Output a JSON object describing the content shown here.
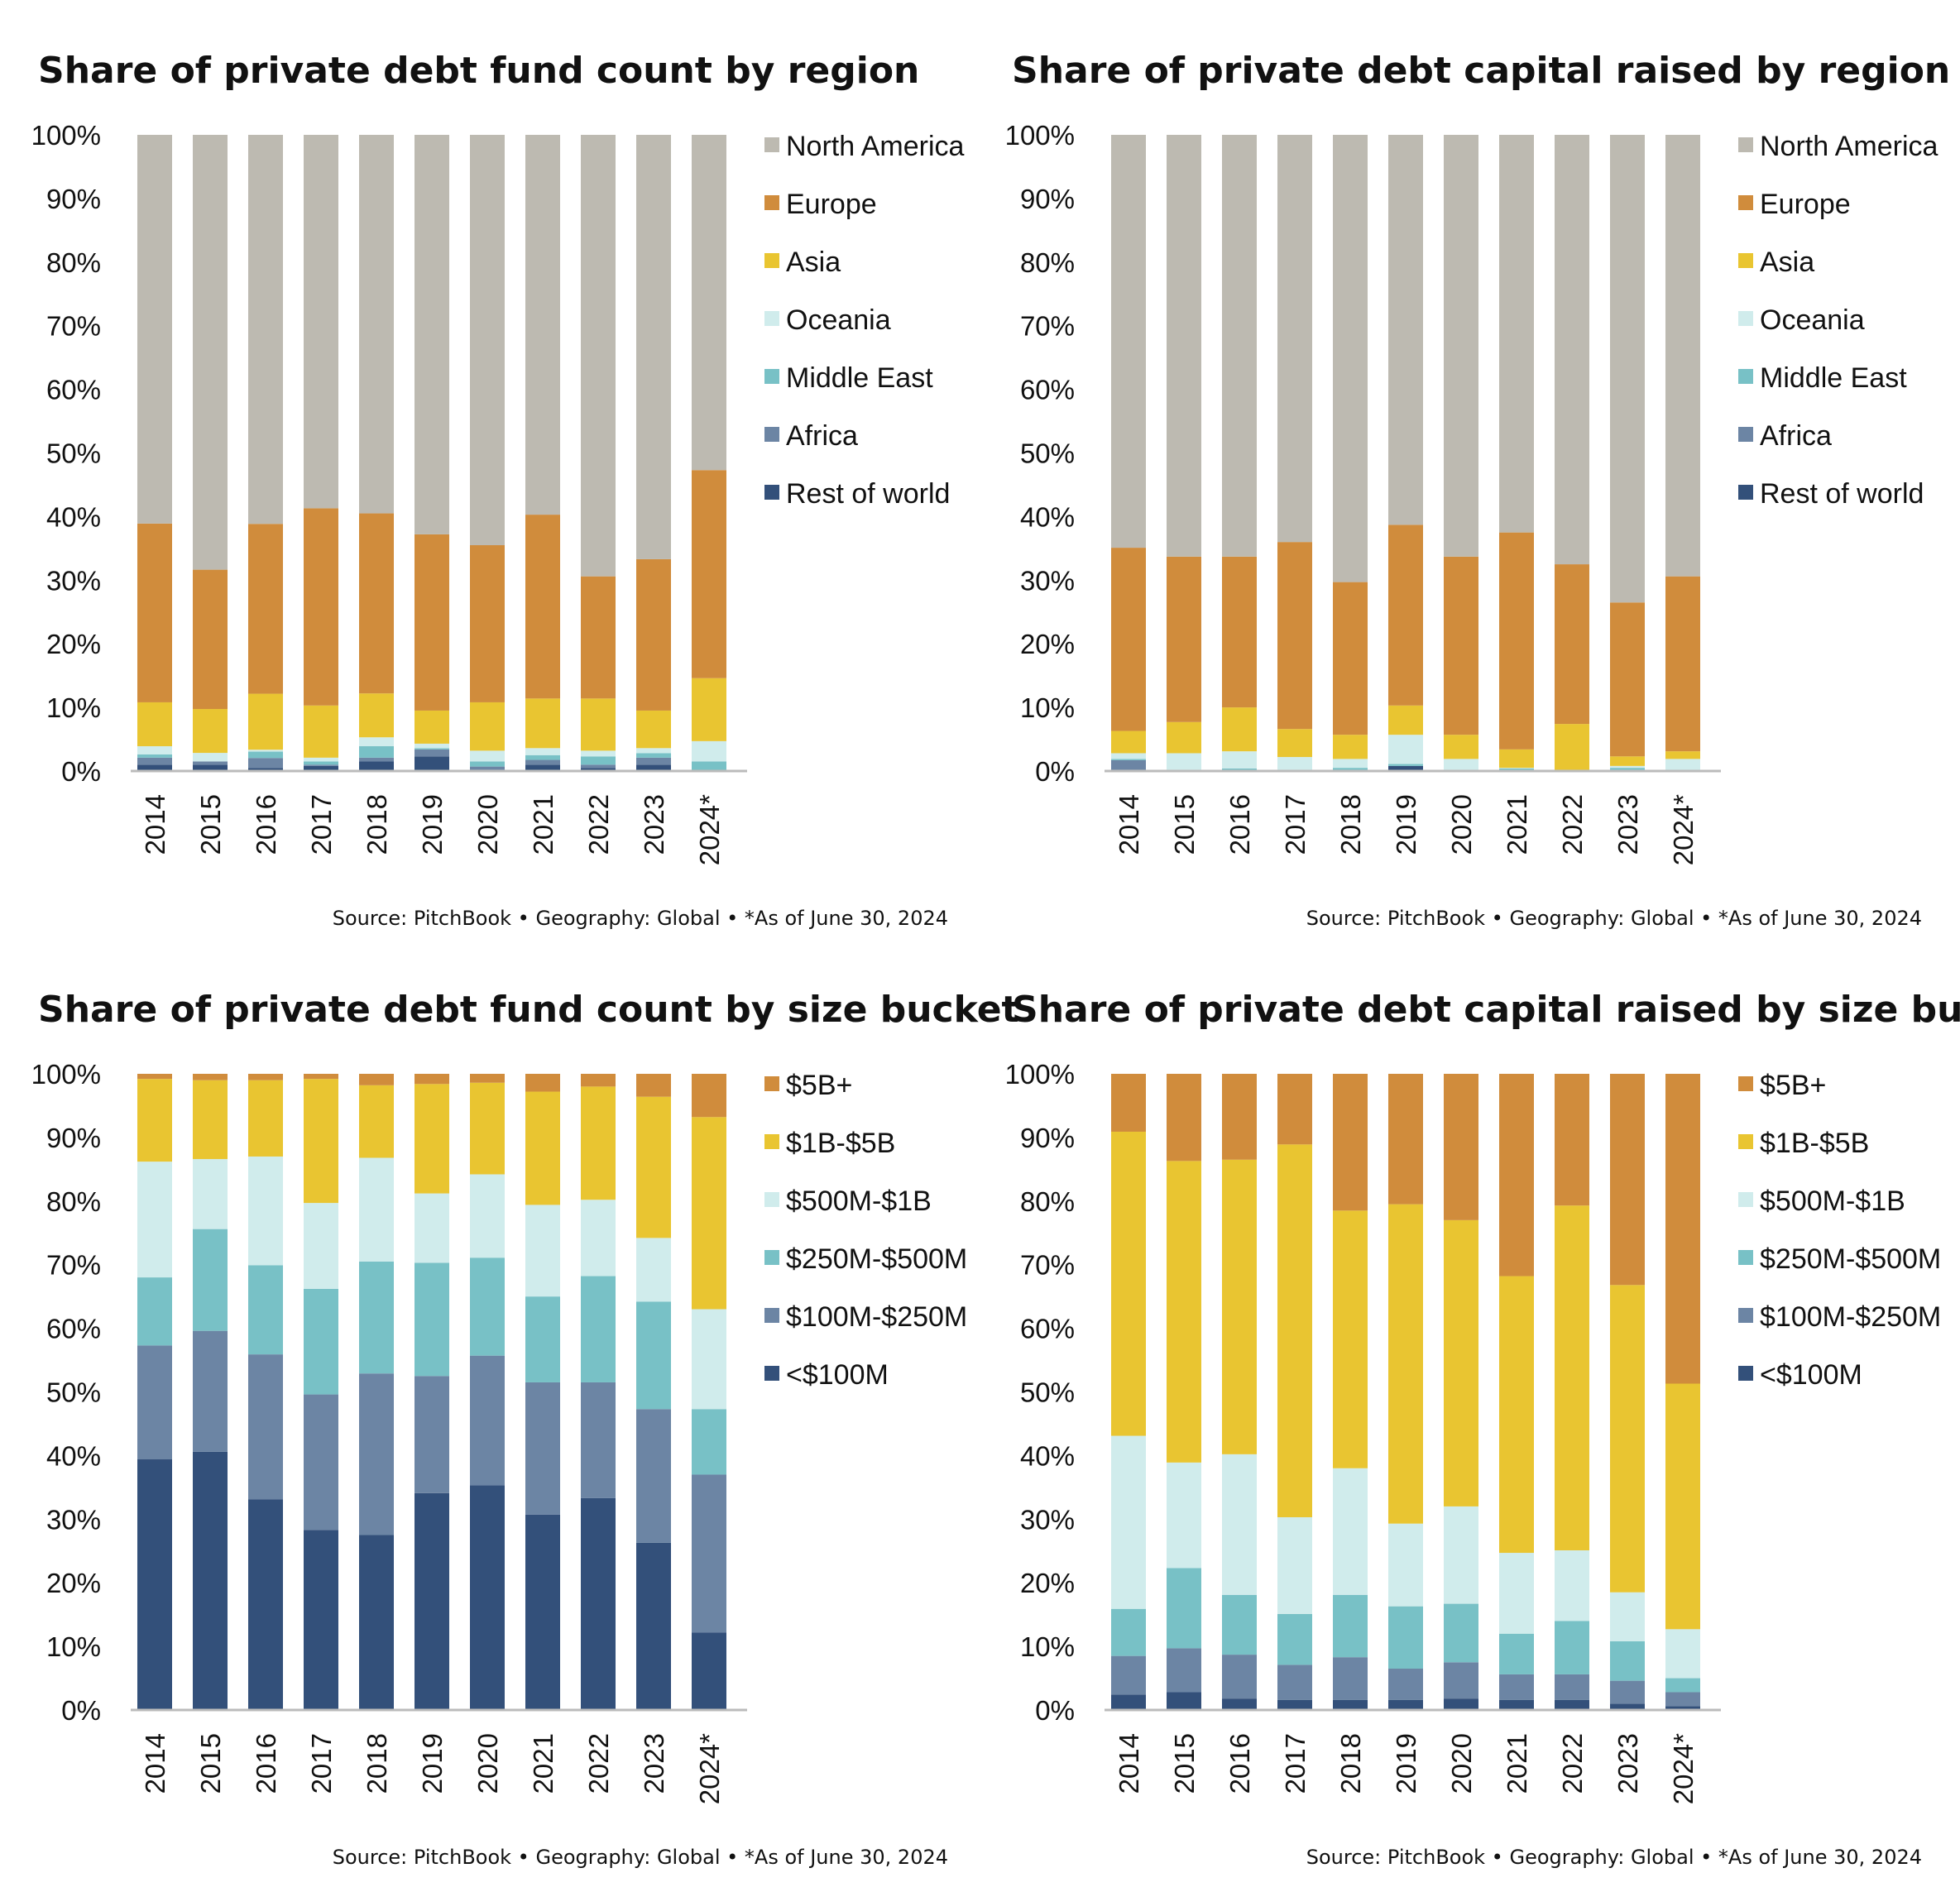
{
  "source_note": "Source: PitchBook  •  Geography: Global  •  *As of June 30, 2024",
  "chart_data": [
    {
      "type": "bar",
      "stacked": true,
      "title": "Share of private debt fund count by region",
      "categories": [
        "2014",
        "2015",
        "2016",
        "2017",
        "2018",
        "2019",
        "2020",
        "2021",
        "2022",
        "2023",
        "2024*"
      ],
      "yticks": [
        "0%",
        "10%",
        "20%",
        "30%",
        "40%",
        "50%",
        "60%",
        "70%",
        "80%",
        "90%",
        "100%"
      ],
      "ylim": [
        0,
        100
      ],
      "legend_position": "right",
      "series": [
        {
          "name": "Rest of world",
          "color": "#33507a",
          "values": [
            1.0,
            1.0,
            0.45,
            0.8,
            1.5,
            2.3,
            0.2,
            1.0,
            0.45,
            1.0,
            0
          ]
        },
        {
          "name": "Africa",
          "color": "#6c85a4",
          "values": [
            1.1,
            0.5,
            1.6,
            0.2,
            0.6,
            1.1,
            0.5,
            0.75,
            0.55,
            1.1,
            0
          ]
        },
        {
          "name": "Middle East",
          "color": "#78c1c6",
          "values": [
            0.5,
            0,
            1.0,
            0.5,
            1.8,
            0.2,
            0.8,
            0.75,
            1.3,
            0.7,
            1.5
          ]
        },
        {
          "name": "Oceania",
          "color": "#d0ecec",
          "values": [
            1.3,
            1.35,
            0.3,
            0.6,
            1.4,
            0.7,
            1.7,
            1.1,
            0.9,
            0.8,
            3.2
          ]
        },
        {
          "name": "Asia",
          "color": "#e9c531",
          "values": [
            6.9,
            6.9,
            8.8,
            8.2,
            6.9,
            5.2,
            7.6,
            7.8,
            8.2,
            5.9,
            9.9
          ]
        },
        {
          "name": "Europe",
          "color": "#d08c3c",
          "values": [
            28.1,
            21.9,
            26.7,
            31.0,
            28.3,
            27.7,
            24.7,
            28.9,
            19.2,
            23.8,
            32.7
          ]
        },
        {
          "name": "North America",
          "color": "#bdbab1",
          "values": [
            61.1,
            68.35,
            61.15,
            58.7,
            59.5,
            62.8,
            64.5,
            59.7,
            69.4,
            66.7,
            52.7
          ]
        }
      ]
    },
    {
      "type": "bar",
      "stacked": true,
      "title": "Share of private debt capital raised by region",
      "categories": [
        "2014",
        "2015",
        "2016",
        "2017",
        "2018",
        "2019",
        "2020",
        "2021",
        "2022",
        "2023",
        "2024*"
      ],
      "yticks": [
        "0%",
        "10%",
        "20%",
        "30%",
        "40%",
        "50%",
        "60%",
        "70%",
        "80%",
        "90%",
        "100%"
      ],
      "ylim": [
        0,
        100
      ],
      "legend_position": "right",
      "series": [
        {
          "name": "Rest of world",
          "color": "#33507a",
          "values": [
            0.2,
            0,
            0,
            0,
            0.2,
            0.8,
            0,
            0.2,
            0,
            0,
            0
          ]
        },
        {
          "name": "Africa",
          "color": "#6c85a4",
          "values": [
            1.5,
            0.2,
            0.2,
            0,
            0,
            0,
            0,
            0,
            0,
            0.2,
            0
          ]
        },
        {
          "name": "Middle East",
          "color": "#78c1c6",
          "values": [
            0.2,
            0,
            0.2,
            0.2,
            0.3,
            0.3,
            0.2,
            0.2,
            0.2,
            0.3,
            0
          ]
        },
        {
          "name": "Oceania",
          "color": "#d0ecec",
          "values": [
            0.9,
            2.6,
            2.7,
            2.0,
            1.4,
            4.6,
            1.7,
            0.1,
            0,
            0.3,
            1.9
          ]
        },
        {
          "name": "Asia",
          "color": "#e9c531",
          "values": [
            3.5,
            4.9,
            6.9,
            4.4,
            3.8,
            4.6,
            3.8,
            2.9,
            7.2,
            1.5,
            1.2
          ]
        },
        {
          "name": "Europe",
          "color": "#d08c3c",
          "values": [
            28.8,
            26.0,
            23.7,
            29.4,
            24.0,
            28.4,
            28.0,
            34.1,
            25.1,
            24.2,
            27.5
          ]
        },
        {
          "name": "North America",
          "color": "#bdbab1",
          "values": [
            64.9,
            66.3,
            66.3,
            64.0,
            70.3,
            61.3,
            66.3,
            62.5,
            67.5,
            73.5,
            69.4
          ]
        }
      ]
    },
    {
      "type": "bar",
      "stacked": true,
      "title": "Share of private debt fund count by size bucket",
      "categories": [
        "2014",
        "2015",
        "2016",
        "2017",
        "2018",
        "2019",
        "2020",
        "2021",
        "2022",
        "2023",
        "2024*"
      ],
      "yticks": [
        "0%",
        "10%",
        "20%",
        "30%",
        "40%",
        "50%",
        "60%",
        "70%",
        "80%",
        "90%",
        "100%"
      ],
      "ylim": [
        0,
        100
      ],
      "legend_position": "right",
      "series": [
        {
          "name": "<$100M",
          "color": "#33507a",
          "values": [
            39.4,
            40.6,
            33.1,
            28.3,
            27.5,
            34.1,
            35.3,
            30.7,
            33.3,
            26.3,
            12.2
          ]
        },
        {
          "name": "$100M-$250M",
          "color": "#6c85a4",
          "values": [
            17.9,
            19.0,
            22.8,
            21.3,
            25.4,
            18.4,
            20.4,
            20.8,
            18.2,
            21.0,
            24.8
          ]
        },
        {
          "name": "$250M-$500M",
          "color": "#78c1c6",
          "values": [
            10.7,
            16.0,
            14.0,
            16.6,
            17.6,
            17.8,
            15.4,
            13.5,
            16.7,
            16.9,
            10.3
          ]
        },
        {
          "name": "$500M-$1B",
          "color": "#d0ecec",
          "values": [
            18.2,
            11.0,
            17.1,
            13.5,
            16.3,
            10.9,
            13.1,
            14.4,
            12.0,
            10.0,
            15.7
          ]
        },
        {
          "name": "$1B-$5B",
          "color": "#e9c531",
          "values": [
            13.0,
            12.4,
            12.0,
            19.5,
            11.4,
            17.2,
            14.4,
            17.8,
            17.8,
            22.2,
            30.2
          ]
        },
        {
          "name": "$5B+",
          "color": "#d08c3c",
          "values": [
            0.8,
            1.0,
            1.0,
            0.8,
            1.8,
            1.6,
            1.4,
            2.8,
            2.0,
            3.6,
            6.8
          ]
        }
      ]
    },
    {
      "type": "bar",
      "stacked": true,
      "title": "Share of private debt capital raised by size bucket",
      "categories": [
        "2014",
        "2015",
        "2016",
        "2017",
        "2018",
        "2019",
        "2020",
        "2021",
        "2022",
        "2023",
        "2024*"
      ],
      "yticks": [
        "0%",
        "10%",
        "20%",
        "30%",
        "40%",
        "50%",
        "60%",
        "70%",
        "80%",
        "90%",
        "100%"
      ],
      "ylim": [
        0,
        100
      ],
      "legend_position": "right",
      "series": [
        {
          "name": "<$100M",
          "color": "#33507a",
          "values": [
            2.4,
            2.8,
            1.8,
            1.6,
            1.6,
            1.6,
            1.8,
            1.6,
            1.6,
            1.0,
            0.6
          ]
        },
        {
          "name": "$100M-$250M",
          "color": "#6c85a4",
          "values": [
            6.1,
            6.9,
            6.9,
            5.5,
            6.7,
            4.9,
            5.7,
            4.0,
            4.0,
            3.6,
            2.2
          ]
        },
        {
          "name": "$250M-$500M",
          "color": "#78c1c6",
          "values": [
            7.4,
            12.6,
            9.4,
            8.0,
            9.8,
            9.8,
            9.2,
            6.4,
            8.4,
            6.2,
            2.2
          ]
        },
        {
          "name": "$500M-$1B",
          "color": "#d0ecec",
          "values": [
            27.2,
            16.6,
            22.1,
            15.2,
            19.9,
            13.0,
            15.3,
            12.7,
            11.1,
            7.7,
            7.7
          ]
        },
        {
          "name": "$1B-$5B",
          "color": "#e9c531",
          "values": [
            47.8,
            47.4,
            46.3,
            58.6,
            40.5,
            50.2,
            45.0,
            43.5,
            54.2,
            48.3,
            38.6
          ]
        },
        {
          "name": "$5B+",
          "color": "#d08c3c",
          "values": [
            9.1,
            13.7,
            13.5,
            11.1,
            21.5,
            20.5,
            23.0,
            31.8,
            20.7,
            33.2,
            48.7
          ]
        }
      ]
    }
  ]
}
